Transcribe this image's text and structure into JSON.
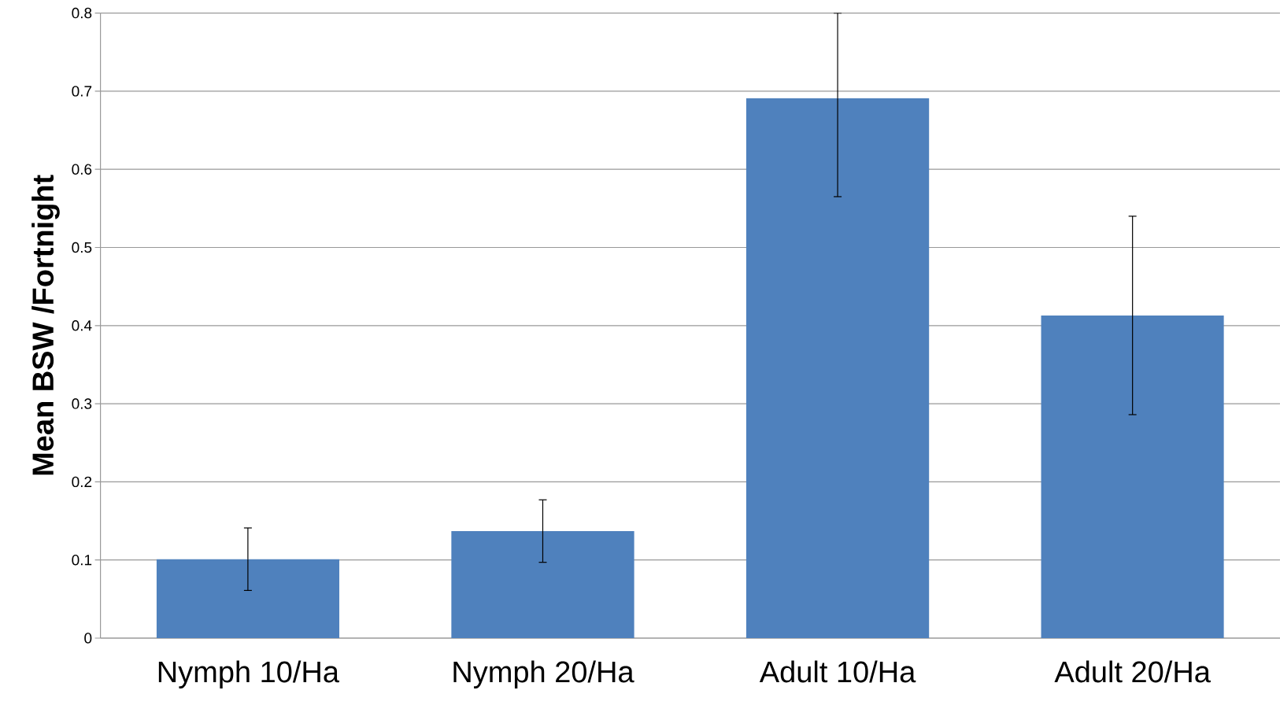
{
  "chart_data": {
    "type": "bar",
    "ylabel": "Mean BSW  /Fortnight",
    "categories": [
      "Nymph 10/Ha",
      "Nymph 20/Ha",
      "Adult 10/Ha",
      "Adult 20/Ha"
    ],
    "values": [
      0.101,
      0.137,
      0.691,
      0.413
    ],
    "errors": [
      0.04,
      0.04,
      [
        0.565,
        0.8
      ],
      0.127
    ],
    "color": "#4f81bd",
    "ylim": [
      0,
      0.8
    ],
    "yticks": [
      0,
      0.1,
      0.2,
      0.3,
      0.4,
      0.5,
      0.6,
      0.7,
      0.8
    ],
    "grid": "y"
  }
}
